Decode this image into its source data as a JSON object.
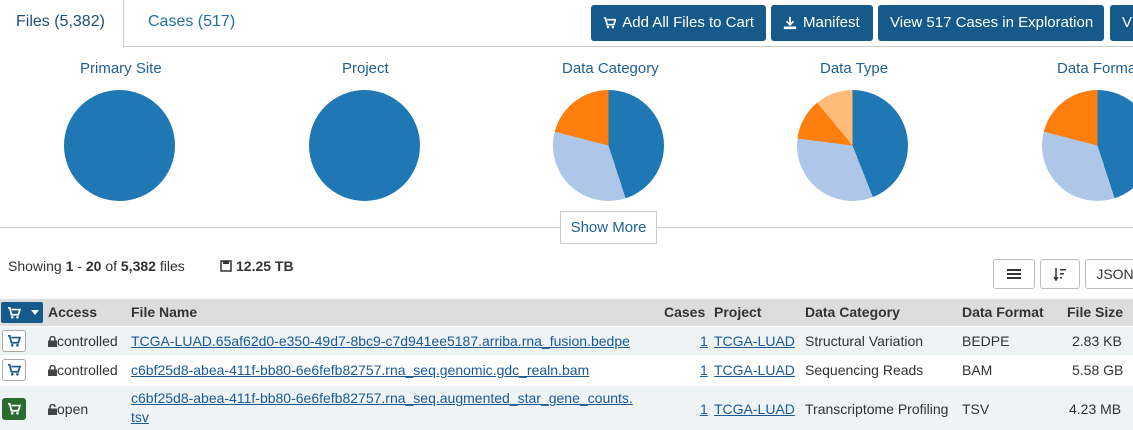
{
  "tabs": {
    "files": "Files (5,382)",
    "cases": "Cases (517)"
  },
  "actions": {
    "add_all": "Add All Files to Cart",
    "manifest": "Manifest",
    "view_cases": "View 517 Cases in Exploration",
    "overflow": "V"
  },
  "charts": {
    "primary_site": "Primary Site",
    "project": "Project",
    "data_category": "Data Category",
    "data_type": "Data Type",
    "data_format": "Data Forma"
  },
  "colors": {
    "blue": "#1f77b4",
    "light_blue": "#aec7e8",
    "orange": "#ff7f0e",
    "peach": "#ffbb78",
    "btn_dark": "#155a8a"
  },
  "chart_data": [
    {
      "type": "pie",
      "title": "Primary Site",
      "values": [
        100
      ]
    },
    {
      "type": "pie",
      "title": "Project",
      "values": [
        100
      ]
    },
    {
      "type": "pie",
      "title": "Data Category",
      "values": [
        45,
        34,
        21
      ]
    },
    {
      "type": "pie",
      "title": "Data Type",
      "values": [
        44,
        33,
        12,
        11
      ]
    },
    {
      "type": "pie",
      "title": "Data Forma",
      "values": [
        45,
        34,
        21
      ]
    }
  ],
  "show_more": "Show More",
  "summary": {
    "prefix": "Showing",
    "from": "1",
    "dash": "-",
    "to": "20",
    "of": "of",
    "total": "5,382",
    "unit": "files",
    "size": "12.25 TB"
  },
  "tools": {
    "json": "JSON"
  },
  "table": {
    "headers": {
      "access": "Access",
      "file_name": "File Name",
      "cases": "Cases",
      "project": "Project",
      "data_category": "Data Category",
      "data_format": "Data Format",
      "file_size": "File Size"
    },
    "rows": [
      {
        "access": "controlled",
        "file_name": "TCGA-LUAD.65af62d0-e350-49d7-8bc9-c7d941ee5187.arriba.rna_fusion.bedpe",
        "file_name_2": "",
        "cases": "1",
        "project": "TCGA-LUAD",
        "data_category": "Structural Variation",
        "data_format": "BEDPE",
        "file_size": "2.83 KB"
      },
      {
        "access": "controlled",
        "file_name": "c6bf25d8-abea-411f-bb80-6e6fefb82757.rna_seq.genomic.gdc_realn.bam",
        "file_name_2": "",
        "cases": "1",
        "project": "TCGA-LUAD",
        "data_category": "Sequencing Reads",
        "data_format": "BAM",
        "file_size": "5.58 GB"
      },
      {
        "access": "open",
        "file_name": "c6bf25d8-abea-411f-bb80-6e6fefb82757.rna_seq.augmented_star_gene_counts.",
        "file_name_2": "tsv",
        "cases": "1",
        "project": "TCGA-LUAD",
        "data_category": "Transcriptome Profiling",
        "data_format": "TSV",
        "file_size": "4.23 MB"
      }
    ]
  }
}
